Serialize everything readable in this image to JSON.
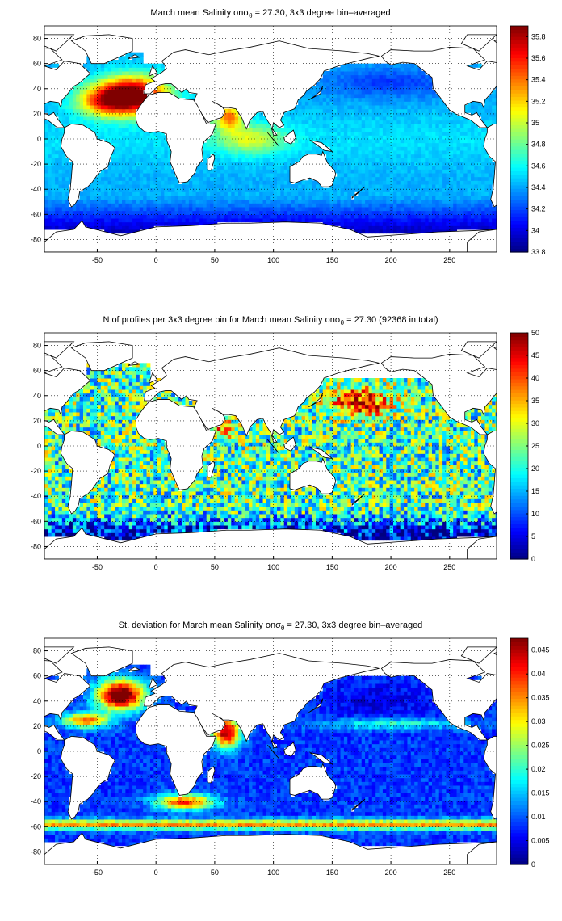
{
  "chart_data": [
    {
      "type": "heatmap",
      "title_prefix": "March mean Salinity on",
      "title_sigma": "σ",
      "title_sub": "θ",
      "title_suffix": " = 27.30, 3x3 degree bin–averaged",
      "x_ticks": [
        -50,
        0,
        50,
        100,
        150,
        200,
        250
      ],
      "y_ticks": [
        -80,
        -60,
        -40,
        -20,
        0,
        20,
        40,
        60,
        80
      ],
      "xlim": [
        -95,
        290
      ],
      "ylim": [
        -90,
        90
      ],
      "grid": true,
      "colorbar": {
        "min": 33.8,
        "max": 35.9,
        "ticks": [
          33.8,
          34,
          34.2,
          34.4,
          34.6,
          34.8,
          35,
          35.2,
          35.4,
          35.6,
          35.8
        ]
      }
    },
    {
      "type": "heatmap",
      "title_prefix": "N of profiles per 3x3 degree bin for March mean Salinity on",
      "title_sigma": "σ",
      "title_sub": "θ",
      "title_suffix": " = 27.30 (92368 in total)",
      "x_ticks": [
        -50,
        0,
        50,
        100,
        150,
        200,
        250
      ],
      "y_ticks": [
        -80,
        -60,
        -40,
        -20,
        0,
        20,
        40,
        60,
        80
      ],
      "xlim": [
        -95,
        290
      ],
      "ylim": [
        -90,
        90
      ],
      "grid": true,
      "colorbar": {
        "min": 0,
        "max": 50,
        "ticks": [
          0,
          5,
          10,
          15,
          20,
          25,
          30,
          35,
          40,
          45,
          50
        ]
      }
    },
    {
      "type": "heatmap",
      "title_prefix": "St. deviation for March mean Salinity on",
      "title_sigma": "σ",
      "title_sub": "θ",
      "title_suffix": " = 27.30, 3x3 degree bin–averaged",
      "x_ticks": [
        -50,
        0,
        50,
        100,
        150,
        200,
        250
      ],
      "y_ticks": [
        -80,
        -60,
        -40,
        -20,
        0,
        20,
        40,
        60,
        80
      ],
      "xlim": [
        -95,
        290
      ],
      "ylim": [
        -90,
        90
      ],
      "grid": true,
      "colorbar": {
        "min": 0,
        "max": 0.0475,
        "ticks": [
          0,
          0.005,
          0.01,
          0.015,
          0.02,
          0.025,
          0.03,
          0.035,
          0.04,
          0.045
        ]
      }
    }
  ]
}
